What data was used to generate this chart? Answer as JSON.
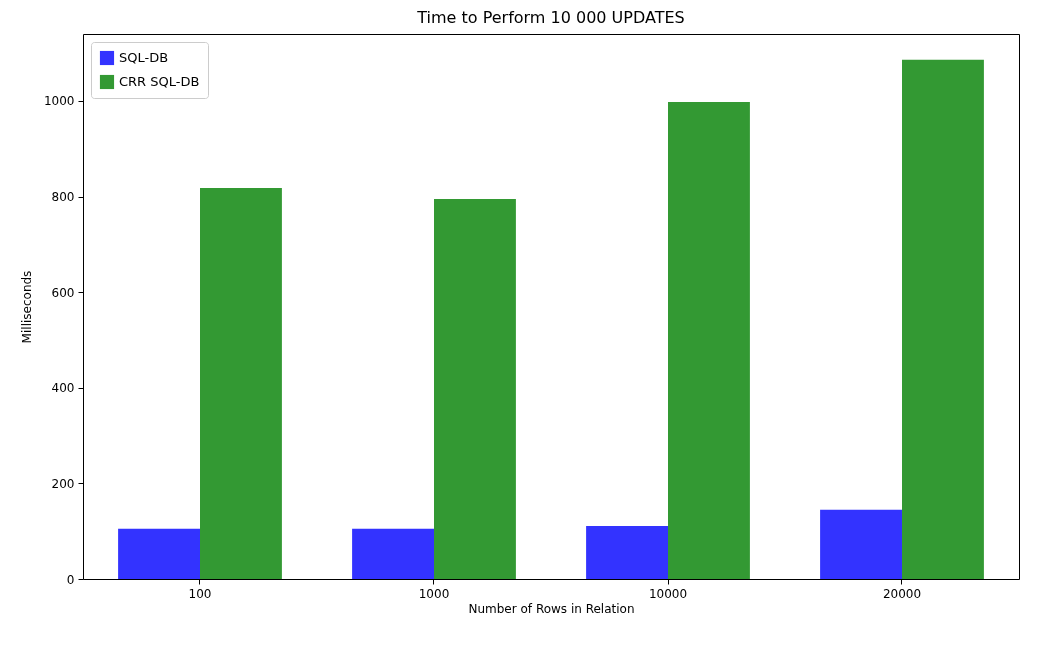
{
  "chart_data": {
    "type": "bar",
    "title": "Time to Perform 10 000 UPDATES",
    "xlabel": "Number of Rows in Relation",
    "ylabel": "Milliseconds",
    "categories": [
      "100",
      "1000",
      "10000",
      "20000"
    ],
    "series": [
      {
        "name": "SQL-DB",
        "color": "#3333ff",
        "values": [
          105,
          105,
          111,
          145
        ]
      },
      {
        "name": "CRR SQL-DB",
        "color": "#339933",
        "values": [
          818,
          795,
          998,
          1086
        ]
      }
    ],
    "ylim": [
      0,
      1140
    ],
    "yticks": [
      0,
      200,
      400,
      600,
      800,
      1000
    ],
    "grid": false,
    "legend": "top left"
  }
}
